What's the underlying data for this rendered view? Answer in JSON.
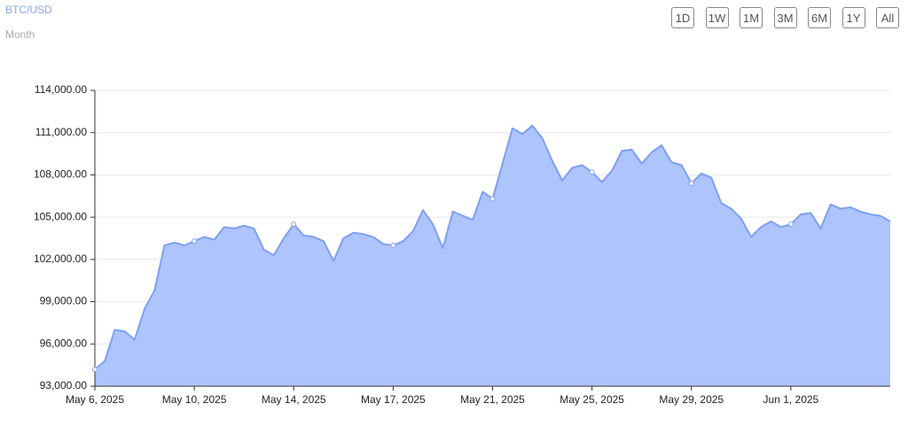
{
  "chart_data": {
    "type": "area",
    "title": "BTC/USD",
    "subtitle": "Month",
    "categories": [
      "May 6, 2025",
      null,
      null,
      null,
      null,
      null,
      null,
      null,
      null,
      null,
      "May 10, 2025",
      null,
      null,
      null,
      null,
      null,
      null,
      null,
      null,
      null,
      "May 14, 2025",
      null,
      null,
      null,
      null,
      null,
      null,
      null,
      null,
      null,
      "May 17, 2025",
      null,
      null,
      null,
      null,
      null,
      null,
      null,
      null,
      null,
      "May 21, 2025",
      null,
      null,
      null,
      null,
      null,
      null,
      null,
      null,
      null,
      "May 25, 2025",
      null,
      null,
      null,
      null,
      null,
      null,
      null,
      null,
      null,
      "May 29, 2025",
      null,
      null,
      null,
      null,
      null,
      null,
      null,
      null,
      null,
      "Jun 1, 2025",
      null,
      null,
      null,
      null,
      null,
      null,
      null,
      null,
      null,
      null
    ],
    "values": [
      94200,
      94800,
      97000,
      96900,
      96300,
      98500,
      99800,
      103000,
      103200,
      103000,
      103300,
      103600,
      103400,
      104300,
      104200,
      104400,
      104200,
      102700,
      102300,
      103500,
      104500,
      103700,
      103600,
      103300,
      101900,
      103500,
      103900,
      103800,
      103600,
      103100,
      103000,
      103300,
      104000,
      105500,
      104500,
      102800,
      105400,
      105100,
      104800,
      106800,
      106300,
      108800,
      111300,
      110900,
      111500,
      110600,
      109000,
      107600,
      108500,
      108700,
      108200,
      107500,
      108300,
      109700,
      109800,
      108800,
      109600,
      110100,
      108900,
      108700,
      107400,
      108100,
      107800,
      106000,
      105600,
      104900,
      103600,
      104300,
      104700,
      104300,
      104500,
      105200,
      105300,
      104200,
      105900,
      105600,
      105700,
      105400,
      105200,
      105100,
      104700
    ],
    "color": "#adc4fc",
    "line_color": "#7f9ff0",
    "ylim": [
      93000,
      114000
    ],
    "yticks": [
      {
        "value": 93000,
        "label": "93,000.00"
      },
      {
        "value": 96000,
        "label": "96,000.00"
      },
      {
        "value": 99000,
        "label": "99,000.00"
      },
      {
        "value": 102000,
        "label": "102,000.00"
      },
      {
        "value": 105000,
        "label": "105,000.00"
      },
      {
        "value": 108000,
        "label": "108,000.00"
      },
      {
        "value": 111000,
        "label": "111,000.00"
      },
      {
        "value": 114000,
        "label": "114,000.00"
      }
    ],
    "grid": true
  },
  "range_buttons": [
    "1D",
    "1W",
    "1M",
    "3M",
    "6M",
    "1Y",
    "All"
  ]
}
